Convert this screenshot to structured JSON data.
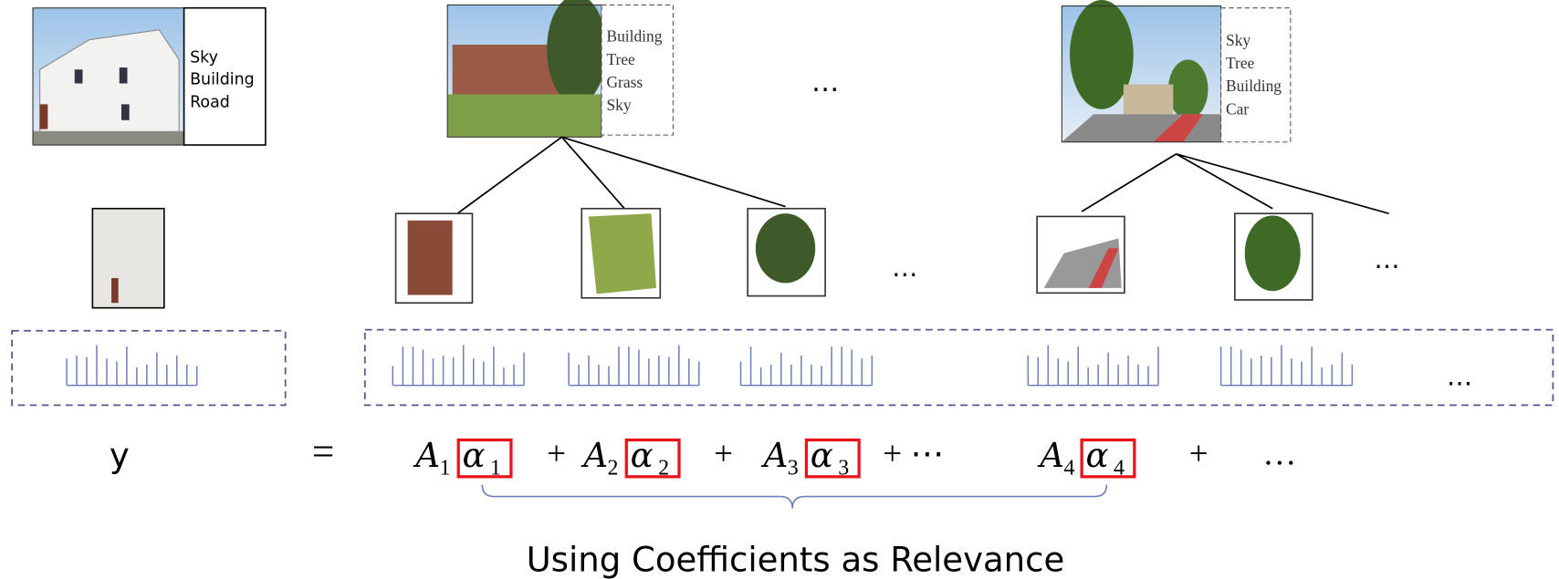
{
  "query": {
    "labels": [
      "Sky",
      "Building",
      "Road"
    ]
  },
  "database": [
    {
      "labels": [
        "Building",
        "Tree",
        "Grass",
        "Sky"
      ]
    },
    {
      "labels": [
        "Sky",
        "Tree",
        "Building",
        "Car"
      ]
    }
  ],
  "top_ellipsis": "…",
  "patch_ellipses": [
    "…",
    "…"
  ],
  "feature_ellipsis": "…",
  "equation": {
    "lhs": "y",
    "equals": "=",
    "terms": [
      {
        "matrix": "A",
        "index": "1",
        "coef": "α"
      },
      {
        "matrix": "A",
        "index": "2",
        "coef": "α"
      },
      {
        "matrix": "A",
        "index": "3",
        "coef": "α"
      },
      {
        "matrix": "A",
        "index": "4",
        "coef": "α"
      }
    ],
    "operators": [
      "+",
      "+",
      "+ ⋯",
      "+",
      "…"
    ]
  },
  "caption": "Using Coefficients as Relevance"
}
